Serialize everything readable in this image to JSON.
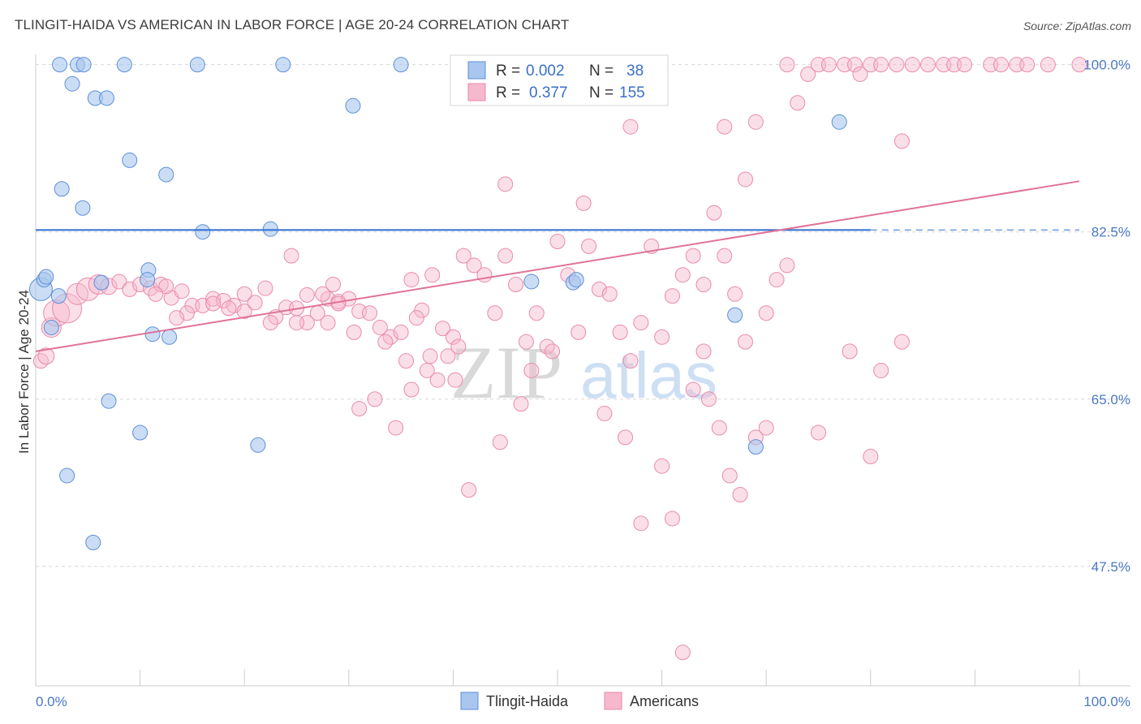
{
  "header": {
    "title": "TLINGIT-HAIDA VS AMERICAN IN LABOR FORCE | AGE 20-24 CORRELATION CHART",
    "source": "Source: ZipAtlas.com"
  },
  "colors": {
    "blue_fill": "#a8c6ee",
    "blue_stroke": "#5d8fd8",
    "blue_line": "#2f6fd0",
    "pink_fill": "#f6b8cc",
    "pink_stroke": "#e98aab",
    "pink_line": "#e0729a",
    "tick_label": "#4a78c4",
    "grid": "#d8d8d8"
  },
  "chart_data": {
    "type": "scatter",
    "xlabel": "",
    "ylabel": "In Labor Force | Age 20-24",
    "xlim": [
      0,
      100
    ],
    "ylim": [
      35,
      101.5
    ],
    "x_tick_labels": [
      "0.0%",
      "100.0%"
    ],
    "y_ticks": [
      {
        "value": 100.0,
        "label": "100.0%"
      },
      {
        "value": 82.5,
        "label": "82.5%"
      },
      {
        "value": 65.0,
        "label": "65.0%"
      },
      {
        "value": 47.5,
        "label": "47.5%"
      }
    ],
    "legend": {
      "position": "top-center",
      "rows": [
        {
          "r_label": "R =",
          "r_value": "0.002",
          "n_label": "N =",
          "n_value": "38"
        },
        {
          "r_label": "R =",
          "r_value": "0.377",
          "n_label": "N =",
          "n_value": "155"
        }
      ]
    },
    "watermark": {
      "zip": "ZIP",
      "atlas": "atlas"
    },
    "series": [
      {
        "name": "Tlingit-Haida",
        "trend": {
          "x": [
            0,
            80,
            100
          ],
          "y": [
            82.7,
            82.7,
            82.7
          ],
          "dashed_from_x": 80
        },
        "points": [
          [
            0.5,
            76.5,
            14
          ],
          [
            0.8,
            77.5,
            9
          ],
          [
            1.0,
            77.8,
            9
          ],
          [
            1.5,
            72.5,
            9
          ],
          [
            2.2,
            75.8,
            9
          ],
          [
            2.3,
            100.0,
            9
          ],
          [
            2.5,
            87.0,
            9
          ],
          [
            3.0,
            57.0,
            9
          ],
          [
            3.5,
            98.0,
            9
          ],
          [
            4.0,
            100.0,
            9
          ],
          [
            4.5,
            85.0,
            9
          ],
          [
            4.6,
            100.0,
            9
          ],
          [
            5.5,
            50.0,
            9
          ],
          [
            5.7,
            96.5,
            9
          ],
          [
            6.3,
            77.2,
            9
          ],
          [
            6.8,
            96.5,
            9
          ],
          [
            7.0,
            64.8,
            9
          ],
          [
            8.5,
            100.0,
            9
          ],
          [
            9.0,
            90.0,
            9
          ],
          [
            10.0,
            61.5,
            9
          ],
          [
            10.8,
            78.5,
            9
          ],
          [
            10.7,
            77.5,
            9
          ],
          [
            11.2,
            71.8,
            9
          ],
          [
            12.5,
            88.5,
            9
          ],
          [
            12.8,
            71.5,
            9
          ],
          [
            15.5,
            100.0,
            9
          ],
          [
            16.0,
            82.5,
            9
          ],
          [
            21.3,
            60.2,
            9
          ],
          [
            22.5,
            82.8,
            9
          ],
          [
            23.7,
            100.0,
            9
          ],
          [
            30.4,
            95.7,
            9
          ],
          [
            35.0,
            100.0,
            9
          ],
          [
            47.5,
            77.3,
            9
          ],
          [
            51.5,
            77.2,
            9
          ],
          [
            51.8,
            77.5,
            9
          ],
          [
            67.0,
            73.8,
            9
          ],
          [
            69.0,
            60.0,
            9
          ],
          [
            77.0,
            94.0,
            9
          ]
        ]
      },
      {
        "name": "Americans",
        "trend": {
          "x": [
            0,
            100
          ],
          "y": [
            70.0,
            87.8
          ]
        },
        "points": [
          [
            0.5,
            69.0,
            9
          ],
          [
            1.0,
            69.5,
            10
          ],
          [
            1.5,
            72.5,
            12
          ],
          [
            2.0,
            74.0,
            16
          ],
          [
            3.0,
            74.5,
            18
          ],
          [
            4.0,
            76.0,
            13
          ],
          [
            5.0,
            76.5,
            14
          ],
          [
            6.0,
            77.0,
            12
          ],
          [
            7.0,
            76.8,
            10
          ],
          [
            8.0,
            77.3,
            9
          ],
          [
            9.0,
            76.5,
            9
          ],
          [
            10.0,
            77.0,
            9
          ],
          [
            11.0,
            76.6,
            9
          ],
          [
            12.0,
            77.0,
            9
          ],
          [
            13.0,
            75.6,
            9
          ],
          [
            14.0,
            76.3,
            9
          ],
          [
            15.0,
            74.8,
            9
          ],
          [
            16.0,
            74.8,
            9
          ],
          [
            17.0,
            75.5,
            9
          ],
          [
            18.0,
            75.3,
            9
          ],
          [
            19.0,
            74.8,
            9
          ],
          [
            20.0,
            74.2,
            9
          ],
          [
            21.0,
            75.1,
            9
          ],
          [
            22.0,
            76.6,
            9
          ],
          [
            23.0,
            73.6,
            9
          ],
          [
            24.0,
            74.6,
            9
          ],
          [
            25.0,
            74.5,
            9
          ],
          [
            26.0,
            75.9,
            9
          ],
          [
            27.0,
            74.0,
            9
          ],
          [
            28.0,
            75.5,
            9
          ],
          [
            29.0,
            75.2,
            9
          ],
          [
            30.0,
            75.5,
            9
          ],
          [
            31.0,
            74.2,
            9
          ],
          [
            32.0,
            74.0,
            9
          ],
          [
            33.0,
            72.5,
            9
          ],
          [
            34.0,
            71.5,
            9
          ],
          [
            35.0,
            72.0,
            9
          ],
          [
            36.0,
            77.5,
            9
          ],
          [
            37.0,
            74.3,
            9
          ],
          [
            38.0,
            78.0,
            9
          ],
          [
            39.0,
            72.4,
            9
          ],
          [
            40.0,
            71.5,
            9
          ],
          [
            41.0,
            80.0,
            9
          ],
          [
            42.0,
            79.0,
            9
          ],
          [
            43.0,
            78.0,
            9
          ],
          [
            44.0,
            74.0,
            9
          ],
          [
            45.0,
            80.0,
            9
          ],
          [
            46.0,
            77.0,
            9
          ],
          [
            47.0,
            71.0,
            9
          ],
          [
            48.0,
            74.0,
            9
          ],
          [
            49.0,
            70.5,
            9
          ],
          [
            50.0,
            81.5,
            9
          ],
          [
            51.0,
            78.0,
            9
          ],
          [
            52.0,
            72.0,
            9
          ],
          [
            53.0,
            81.0,
            9
          ],
          [
            54.0,
            76.5,
            9
          ],
          [
            55.0,
            76.0,
            9
          ],
          [
            56.0,
            72.0,
            9
          ],
          [
            57.0,
            69.0,
            9
          ],
          [
            58.0,
            73.0,
            9
          ],
          [
            59.0,
            81.0,
            9
          ],
          [
            60.0,
            71.5,
            9
          ],
          [
            61.0,
            75.8,
            9
          ],
          [
            62.0,
            78.0,
            9
          ],
          [
            63.0,
            80.0,
            9
          ],
          [
            64.0,
            77.0,
            9
          ],
          [
            65.0,
            84.5,
            9
          ],
          [
            66.0,
            80.0,
            9
          ],
          [
            67.0,
            76.0,
            9
          ],
          [
            68.0,
            71.0,
            9
          ],
          [
            69.0,
            61.0,
            9
          ],
          [
            70.0,
            74.0,
            9
          ],
          [
            71.0,
            77.5,
            9
          ],
          [
            72.0,
            79.0,
            9
          ],
          [
            75.0,
            61.5,
            9
          ],
          [
            78.0,
            70.0,
            9
          ],
          [
            80.0,
            59.0,
            9
          ],
          [
            81.0,
            68.0,
            9
          ],
          [
            83.0,
            71.0,
            9
          ],
          [
            55.5,
            100.0,
            9
          ],
          [
            57.0,
            93.5,
            9
          ],
          [
            58.0,
            52.0,
            9
          ],
          [
            59.0,
            100.0,
            9
          ],
          [
            60.0,
            58.0,
            9
          ],
          [
            61.0,
            52.5,
            9
          ],
          [
            62.0,
            38.5,
            9
          ],
          [
            63.0,
            66.0,
            9
          ],
          [
            64.0,
            70.0,
            9
          ],
          [
            66.0,
            93.5,
            9
          ],
          [
            68.0,
            88.0,
            9
          ],
          [
            69.0,
            94.0,
            9
          ],
          [
            70.0,
            62.0,
            9
          ],
          [
            72.0,
            100.0,
            9
          ],
          [
            73.0,
            96.0,
            9
          ],
          [
            74.0,
            99.0,
            9
          ],
          [
            75.0,
            100.0,
            9
          ],
          [
            76.0,
            100.0,
            9
          ],
          [
            77.5,
            100.0,
            9
          ],
          [
            78.5,
            100.0,
            9
          ],
          [
            79.0,
            99.0,
            9
          ],
          [
            80.0,
            100.0,
            9
          ],
          [
            81.0,
            100.0,
            9
          ],
          [
            82.5,
            100.0,
            9
          ],
          [
            83.0,
            92.0,
            9
          ],
          [
            84.0,
            100.0,
            9
          ],
          [
            85.5,
            100.0,
            9
          ],
          [
            87.0,
            100.0,
            9
          ],
          [
            88.0,
            100.0,
            9
          ],
          [
            89.0,
            100.0,
            9
          ],
          [
            91.5,
            100.0,
            9
          ],
          [
            92.5,
            100.0,
            9
          ],
          [
            94.0,
            100.0,
            9
          ],
          [
            95.0,
            100.0,
            9
          ],
          [
            97.0,
            100.0,
            9
          ],
          [
            100.0,
            100.0,
            9
          ],
          [
            26.0,
            73.0,
            9
          ],
          [
            27.5,
            76.0,
            9
          ],
          [
            28.5,
            77.0,
            9
          ],
          [
            31.0,
            64.0,
            9
          ],
          [
            32.5,
            65.0,
            9
          ],
          [
            34.5,
            62.0,
            9
          ],
          [
            36.0,
            66.0,
            9
          ],
          [
            37.5,
            68.0,
            9
          ],
          [
            38.5,
            67.0,
            9
          ],
          [
            39.5,
            69.5,
            9
          ],
          [
            40.5,
            70.5,
            9
          ],
          [
            41.5,
            55.5,
            9
          ],
          [
            44.5,
            60.5,
            9
          ],
          [
            45.0,
            87.5,
            9
          ],
          [
            46.5,
            64.5,
            9
          ],
          [
            47.5,
            68.0,
            9
          ],
          [
            49.5,
            70.0,
            9
          ],
          [
            52.5,
            85.5,
            9
          ],
          [
            54.5,
            63.5,
            9
          ],
          [
            56.5,
            61.0,
            9
          ],
          [
            64.5,
            65.0,
            9
          ],
          [
            65.5,
            62.0,
            9
          ],
          [
            66.5,
            57.0,
            9
          ],
          [
            67.5,
            55.0,
            9
          ],
          [
            20.0,
            76.0,
            9
          ],
          [
            18.5,
            74.5,
            9
          ],
          [
            17.0,
            75.0,
            9
          ],
          [
            14.5,
            74.0,
            9
          ],
          [
            13.5,
            73.5,
            9
          ],
          [
            12.5,
            76.8,
            9
          ],
          [
            11.5,
            76.0,
            9
          ],
          [
            22.5,
            73.0,
            9
          ],
          [
            24.5,
            80.0,
            9
          ],
          [
            25.0,
            73.0,
            9
          ],
          [
            28.0,
            73.0,
            9
          ],
          [
            29.0,
            75.0,
            9
          ],
          [
            30.5,
            72.0,
            9
          ],
          [
            33.5,
            71.0,
            9
          ],
          [
            35.5,
            69.0,
            9
          ],
          [
            36.5,
            73.5,
            9
          ],
          [
            37.8,
            69.5,
            9
          ],
          [
            40.2,
            67.0,
            9
          ]
        ]
      }
    ]
  }
}
